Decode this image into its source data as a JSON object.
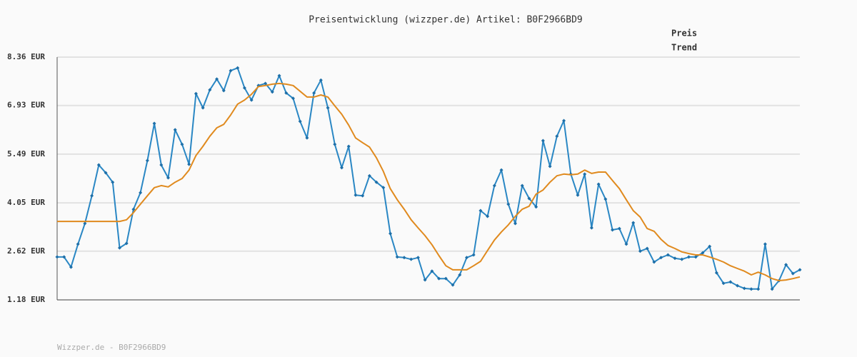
{
  "chart_data": {
    "type": "line",
    "title": "Preisentwicklung (wizzper.de) Artikel: B0F2966BD9",
    "footer": "Wizzper.de - B0F2966BD9",
    "ylim": [
      1.18,
      8.36
    ],
    "yticks": [
      {
        "value": 1.18,
        "label": "1.18 EUR"
      },
      {
        "value": 2.62,
        "label": "2.62 EUR"
      },
      {
        "value": 4.05,
        "label": "4.05 EUR"
      },
      {
        "value": 5.49,
        "label": "5.49 EUR"
      },
      {
        "value": 6.93,
        "label": "6.93 EUR"
      },
      {
        "value": 8.36,
        "label": "8.36 EUR"
      }
    ],
    "grid": true,
    "legend": "top-right",
    "series": [
      {
        "name": "Preis",
        "color": "#2a87c4",
        "markers": true,
        "values": [
          2.45,
          2.45,
          2.15,
          2.83,
          3.44,
          4.26,
          5.17,
          4.94,
          4.66,
          2.72,
          2.85,
          3.86,
          4.35,
          5.3,
          6.4,
          5.17,
          4.79,
          6.21,
          5.78,
          5.19,
          7.28,
          6.86,
          7.39,
          7.71,
          7.37,
          7.96,
          8.04,
          7.45,
          7.09,
          7.52,
          7.58,
          7.33,
          7.81,
          7.3,
          7.14,
          6.46,
          5.97,
          7.3,
          7.68,
          6.86,
          5.78,
          5.09,
          5.72,
          4.28,
          4.26,
          4.85,
          4.66,
          4.5,
          3.14,
          2.45,
          2.43,
          2.38,
          2.43,
          1.77,
          2.03,
          1.81,
          1.81,
          1.62,
          1.92,
          2.43,
          2.51,
          3.82,
          3.65,
          4.56,
          5.02,
          4.01,
          3.44,
          4.56,
          4.18,
          3.93,
          5.89,
          5.13,
          6.02,
          6.48,
          4.9,
          4.28,
          4.9,
          3.31,
          4.6,
          4.16,
          3.25,
          3.29,
          2.83,
          3.46,
          2.62,
          2.7,
          2.3,
          2.43,
          2.51,
          2.41,
          2.38,
          2.45,
          2.45,
          2.57,
          2.76,
          1.98,
          1.67,
          1.71,
          1.6,
          1.52,
          1.5,
          1.5,
          2.83,
          1.5,
          1.75,
          2.22,
          1.96,
          2.07
        ]
      },
      {
        "name": "Trend",
        "color": "#e08a1e",
        "markers": false,
        "values": [
          3.5,
          3.5,
          3.5,
          3.5,
          3.5,
          3.5,
          3.5,
          3.5,
          3.5,
          3.5,
          3.55,
          3.76,
          4.01,
          4.26,
          4.5,
          4.56,
          4.52,
          4.66,
          4.77,
          5.02,
          5.45,
          5.72,
          6.02,
          6.27,
          6.37,
          6.65,
          6.97,
          7.09,
          7.26,
          7.49,
          7.52,
          7.56,
          7.58,
          7.56,
          7.52,
          7.35,
          7.18,
          7.18,
          7.24,
          7.18,
          6.92,
          6.67,
          6.35,
          5.97,
          5.83,
          5.7,
          5.38,
          4.98,
          4.47,
          4.14,
          3.86,
          3.55,
          3.31,
          3.08,
          2.81,
          2.49,
          2.19,
          2.07,
          2.07,
          2.07,
          2.19,
          2.32,
          2.64,
          2.95,
          3.19,
          3.4,
          3.65,
          3.86,
          3.95,
          4.31,
          4.43,
          4.66,
          4.85,
          4.9,
          4.88,
          4.9,
          5.02,
          4.92,
          4.96,
          4.96,
          4.71,
          4.47,
          4.14,
          3.82,
          3.63,
          3.29,
          3.21,
          2.97,
          2.79,
          2.7,
          2.6,
          2.55,
          2.51,
          2.51,
          2.45,
          2.38,
          2.3,
          2.19,
          2.11,
          2.03,
          1.92,
          2.0,
          1.92,
          1.81,
          1.75,
          1.77,
          1.81,
          1.86
        ]
      }
    ]
  }
}
